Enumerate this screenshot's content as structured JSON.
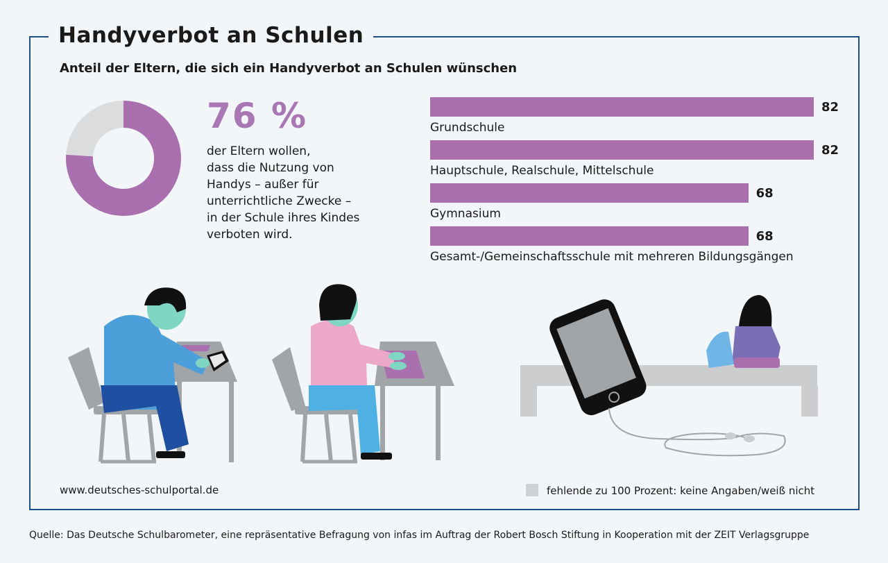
{
  "title": "Handyverbot an Schulen",
  "subtitle": "Anteil der Eltern, die sich ein Handyverbot an Schulen wünschen",
  "headline": {
    "percent_label": "76 %",
    "percent_value": 76,
    "description_lines": [
      "der Eltern wollen,",
      "dass die Nutzung von",
      "Handys – außer für",
      "unterrichtliche Zwecke –",
      "in der Schule ihres Kindes",
      "verboten wird."
    ]
  },
  "colors": {
    "accent": "#a96fae",
    "missing": "#dadcde",
    "frame": "#1b4f8a"
  },
  "chart_data": [
    {
      "type": "pie",
      "values": [
        76,
        24
      ],
      "categories": [
        "",
        "fehlende zu 100 Prozent: keine Angaben/weiß nicht"
      ],
      "colors": [
        "#a96fae",
        "#dadcde"
      ]
    },
    {
      "type": "bar",
      "orientation": "horizontal",
      "categories": [
        "Grundschule",
        "Hauptschule, Realschule, Mittelschule",
        "Gymnasium",
        "Gesamt-/Gemeinschaftsschule mit mehreren Bildungsgängen"
      ],
      "values": [
        82,
        82,
        68,
        68
      ],
      "value_labels": [
        "82",
        "82",
        "68",
        "68"
      ],
      "xlim": [
        0,
        100
      ]
    }
  ],
  "footer": {
    "url": "www.deutsches-schulportal.de",
    "legend_label": "fehlende zu 100 Prozent: keine Angaben/weiß nicht",
    "source": "Quelle: Das Deutsche Schulbarometer, eine repräsentative Befragung von infas im Auftrag der Robert Bosch Stiftung in Kooperation mit der ZEIT Verlagsgruppe"
  }
}
